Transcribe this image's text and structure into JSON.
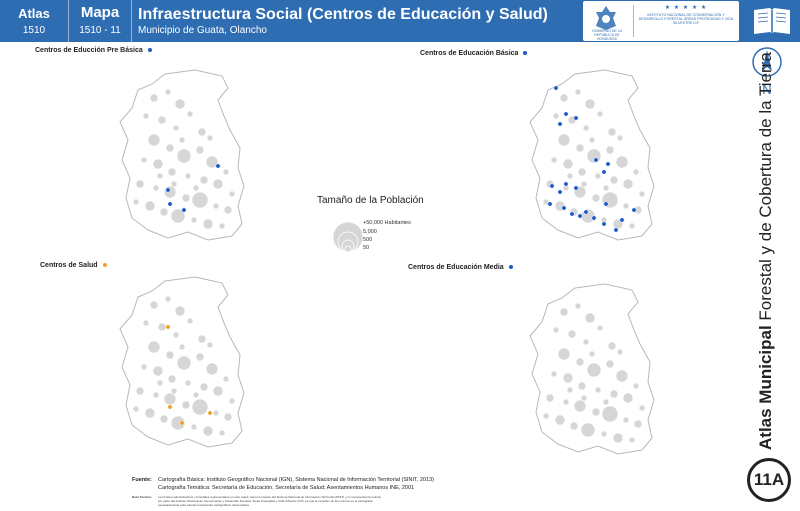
{
  "header": {
    "atlas_label": "Atlas",
    "atlas_number": "1510",
    "mapa_label": "Mapa",
    "mapa_number": "1510 - 11",
    "title": "Infraestructura Social (Centros de Educación y Salud)",
    "subtitle": "Municipio de Guata, Olancho"
  },
  "logos": {
    "gov_text": "GOBIERNO DE LA REPÚBLICA DE HONDURAS",
    "stars": "★ ★ ★ ★ ★",
    "icf_text": "INSTITUTO NACIONAL DE CONSERVACIÓN Y DESARROLLO FORESTAL ÁREAS PROTEGIDAS Y VIDA SILVESTRE ICF"
  },
  "side": {
    "bold_title": "Atlas Municipal",
    "rest_title": "Forestal y de Cobertura de la Tierra",
    "north_letter": "N",
    "map_number": "11A"
  },
  "maps": [
    {
      "id": "preb",
      "title": "Centros de Educción Pre Básica",
      "dot_color": "#1f5bc4"
    },
    {
      "id": "basica",
      "title": "Centros de Educación Básica",
      "dot_color": "#1f5bc4"
    },
    {
      "id": "salud",
      "title": "Centros de Salud",
      "dot_color": "#f0a020"
    },
    {
      "id": "media",
      "title": "Centros de Educación Media",
      "dot_color": "#1f5bc4"
    }
  ],
  "legend": {
    "title": "Tamaño de la Población",
    "labels": [
      "+50,000 Habitantes",
      "5,000",
      "500",
      "50"
    ]
  },
  "footer": {
    "fuente_label": "Fuente:",
    "fuente_line1": "Cartografía Básica: Instituto Geográfico Nacional (IGN), Sistema Nacional de Información Territorial (SINIT, 2013)",
    "fuente_line2": "Cartografía Temática: Secretaría de Educación, Secretaría de Salud; Asentamientos Humanos INE, 2001",
    "nota_label": "Nota Técnica:",
    "nota_line1": "Los límites administrativos y forestales representados en este mapa, fueron tomados del Sistema Nacional de Información Territorial (SINIT) y no representan la opinión",
    "nota_line2": "por parte del Instituto Nacional de Conservación y Desarrollo Forestal, Áreas Protegidas y Vida Silvestre (ICF) ya que la inclusión de los mismos en la cartografía",
    "nota_line3": "necesariamente para efectos únicamente cartográficos referenciales."
  },
  "colors": {
    "header_blue": "#2f6db3",
    "settlement_gray": "#d6d6d6",
    "outline_gray": "#b8b8b8",
    "education_dot": "#1f5bc4",
    "health_dot": "#f0a020"
  }
}
